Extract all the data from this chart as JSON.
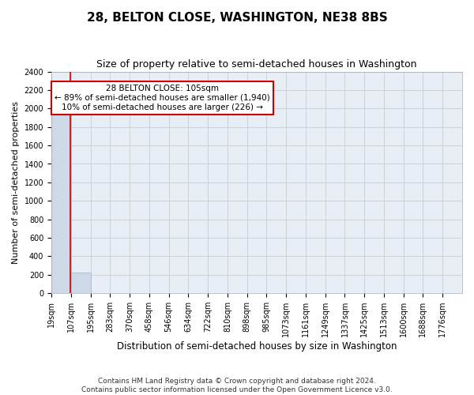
{
  "title1": "28, BELTON CLOSE, WASHINGTON, NE38 8BS",
  "title2": "Size of property relative to semi-detached houses in Washington",
  "xlabel": "Distribution of semi-detached houses by size in Washington",
  "ylabel": "Number of semi-detached properties",
  "footnote1": "Contains HM Land Registry data © Crown copyright and database right 2024.",
  "footnote2": "Contains public sector information licensed under the Open Government Licence v3.0.",
  "annotation_line1": "28 BELTON CLOSE: 105sqm",
  "annotation_line2": "← 89% of semi-detached houses are smaller (1,940)",
  "annotation_line3": "10% of semi-detached houses are larger (226) →",
  "bin_edges": [
    19,
    107,
    195,
    283,
    370,
    458,
    546,
    634,
    722,
    810,
    898,
    985,
    1073,
    1161,
    1249,
    1337,
    1425,
    1513,
    1600,
    1688,
    1776
  ],
  "bin_labels": [
    "19sqm",
    "107sqm",
    "195sqm",
    "283sqm",
    "370sqm",
    "458sqm",
    "546sqm",
    "634sqm",
    "722sqm",
    "810sqm",
    "898sqm",
    "985sqm",
    "1073sqm",
    "1161sqm",
    "1249sqm",
    "1337sqm",
    "1425sqm",
    "1513sqm",
    "1600sqm",
    "1688sqm",
    "1776sqm"
  ],
  "bar_heights": [
    1940,
    226,
    0,
    0,
    0,
    0,
    0,
    0,
    0,
    0,
    0,
    0,
    0,
    0,
    0,
    0,
    0,
    0,
    0,
    0
  ],
  "bar_color": "#cdd8e8",
  "bar_edge_color": "#aab8cc",
  "red_line_x": 105,
  "annotation_box_color": "#ffffff",
  "annotation_box_edge": "#cc0000",
  "ylim": [
    0,
    2400
  ],
  "yticks": [
    0,
    200,
    400,
    600,
    800,
    1000,
    1200,
    1400,
    1600,
    1800,
    2000,
    2200,
    2400
  ],
  "grid_color": "#cccccc",
  "bg_color": "#e8eef5",
  "title1_fontsize": 11,
  "title2_fontsize": 9,
  "xlabel_fontsize": 8.5,
  "ylabel_fontsize": 8,
  "tick_fontsize": 7,
  "annotation_fontsize": 7.5
}
